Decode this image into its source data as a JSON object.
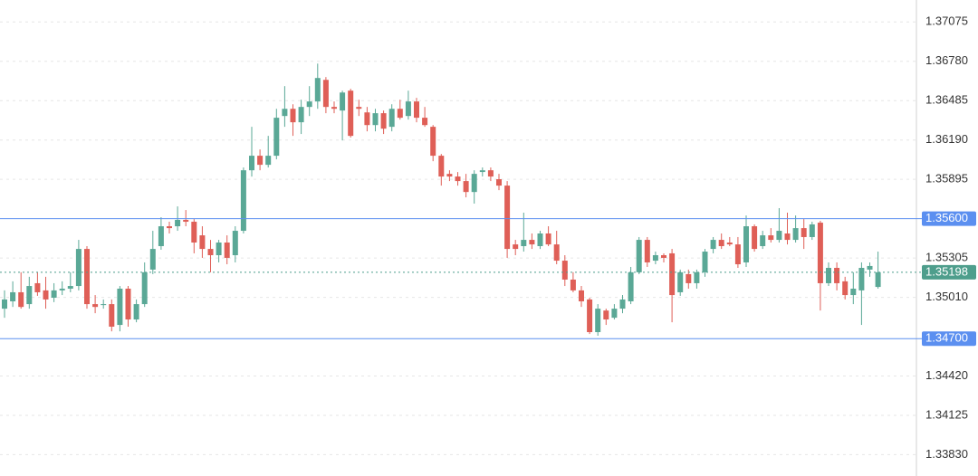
{
  "chart_data": {
    "type": "candlestick",
    "ylim": [
      1.3367,
      1.3724
    ],
    "yticks": [
      1.37075,
      {
        "value": 1.3678,
        "label": "1.36780"
      },
      1.36485,
      {
        "value": 1.3619,
        "label": "1.36190"
      },
      1.35895,
      1.35305,
      {
        "value": 1.3501,
        "label": "1.35010"
      },
      {
        "value": 1.3442,
        "label": "1.34420"
      },
      1.34125,
      {
        "value": 1.3383,
        "label": "1.33830"
      }
    ],
    "grid": true,
    "up_color": "#5aa896",
    "down_color": "#df5f57",
    "hlines": [
      {
        "value": 1.356,
        "label": "1.35600",
        "color": "#5b8ff0"
      },
      {
        "value": 1.347,
        "label": "1.34700",
        "color": "#5b8ff0"
      }
    ],
    "price_line": {
      "value": 1.35198,
      "color": "#4e9e8c"
    },
    "candles": [
      [
        1.34925,
        1.35062,
        1.34857,
        1.34994
      ],
      [
        1.3498,
        1.3513,
        1.34938,
        1.35048
      ],
      [
        1.35048,
        1.35198,
        1.34925,
        1.34938
      ],
      [
        1.34959,
        1.35164,
        1.34925,
        1.35095
      ],
      [
        1.35116,
        1.35198,
        1.35021,
        1.35048
      ],
      [
        1.35062,
        1.35164,
        1.34925,
        1.34994
      ],
      [
        1.35007,
        1.35116,
        1.34974,
        1.35062
      ],
      [
        1.35062,
        1.3513,
        1.35027,
        1.35075
      ],
      [
        1.35075,
        1.35198,
        1.35048,
        1.35095
      ],
      [
        1.35095,
        1.35441,
        1.35062,
        1.35373
      ],
      [
        1.35373,
        1.35394,
        1.34925,
        1.34959
      ],
      [
        1.34959,
        1.35027,
        1.34891,
        1.34938
      ],
      [
        1.34952,
        1.34994,
        1.34925,
        1.34959
      ],
      [
        1.34959,
        1.34994,
        1.34755,
        1.3479
      ],
      [
        1.34803,
        1.35095,
        1.34755,
        1.35075
      ],
      [
        1.35075,
        1.35095,
        1.3479,
        1.34844
      ],
      [
        1.34844,
        1.34994,
        1.34823,
        1.34959
      ],
      [
        1.34959,
        1.35272,
        1.34938,
        1.35198
      ],
      [
        1.35218,
        1.35509,
        1.35184,
        1.35373
      ],
      [
        1.35394,
        1.35611,
        1.35367,
        1.35543
      ],
      [
        1.35543,
        1.35577,
        1.35489,
        1.35529
      ],
      [
        1.35543,
        1.35692,
        1.35509,
        1.35591
      ],
      [
        1.35591,
        1.35665,
        1.35543,
        1.35577
      ],
      [
        1.35577,
        1.35597,
        1.3534,
        1.35421
      ],
      [
        1.35475,
        1.35543,
        1.35306,
        1.35373
      ],
      [
        1.35373,
        1.35441,
        1.35198,
        1.35326
      ],
      [
        1.35326,
        1.35441,
        1.35272,
        1.35421
      ],
      [
        1.35421,
        1.35475,
        1.35258,
        1.35306
      ],
      [
        1.35326,
        1.35543,
        1.35272,
        1.35509
      ],
      [
        1.35509,
        1.35984,
        1.35489,
        1.35963
      ],
      [
        1.35963,
        1.36289,
        1.35916,
        1.36072
      ],
      [
        1.36072,
        1.36119,
        1.35963,
        1.36004
      ],
      [
        1.36004,
        1.36221,
        1.35984,
        1.36072
      ],
      [
        1.36072,
        1.36424,
        1.36045,
        1.36357
      ],
      [
        1.3637,
        1.36594,
        1.36289,
        1.36424
      ],
      [
        1.36424,
        1.36458,
        1.36221,
        1.36323
      ],
      [
        1.36323,
        1.36492,
        1.36235,
        1.36438
      ],
      [
        1.36438,
        1.36594,
        1.3637,
        1.36479
      ],
      [
        1.36479,
        1.36763,
        1.36424,
        1.36655
      ],
      [
        1.36641,
        1.36662,
        1.36391,
        1.36438
      ],
      [
        1.36438,
        1.36479,
        1.36391,
        1.36424
      ],
      [
        1.36411,
        1.3656,
        1.36187,
        1.36546
      ],
      [
        1.3656,
        1.36574,
        1.36208,
        1.36221
      ],
      [
        1.36438,
        1.36492,
        1.3637,
        1.36424
      ],
      [
        1.36397,
        1.36438,
        1.36255,
        1.36302
      ],
      [
        1.36302,
        1.36424,
        1.36255,
        1.36391
      ],
      [
        1.36391,
        1.36411,
        1.36235,
        1.36275
      ],
      [
        1.36289,
        1.36458,
        1.36255,
        1.36424
      ],
      [
        1.36424,
        1.36492,
        1.36343,
        1.36357
      ],
      [
        1.3637,
        1.3656,
        1.36343,
        1.36479
      ],
      [
        1.36479,
        1.36506,
        1.36323,
        1.36357
      ],
      [
        1.36357,
        1.36438,
        1.36289,
        1.36302
      ],
      [
        1.36289,
        1.36302,
        1.36031,
        1.36072
      ],
      [
        1.36072,
        1.36085,
        1.35848,
        1.35916
      ],
      [
        1.35936,
        1.35963,
        1.35882,
        1.35916
      ],
      [
        1.35916,
        1.3595,
        1.35848,
        1.35882
      ],
      [
        1.35882,
        1.35936,
        1.3576,
        1.358
      ],
      [
        1.358,
        1.35963,
        1.35713,
        1.35936
      ],
      [
        1.3595,
        1.35984,
        1.35916,
        1.35963
      ],
      [
        1.35963,
        1.35984,
        1.35882,
        1.35916
      ],
      [
        1.35896,
        1.35936,
        1.35814,
        1.35848
      ],
      [
        1.35848,
        1.35882,
        1.35306,
        1.35373
      ],
      [
        1.35407,
        1.35441,
        1.35326,
        1.35373
      ],
      [
        1.35394,
        1.35645,
        1.35353,
        1.35441
      ],
      [
        1.35441,
        1.35489,
        1.35373,
        1.35407
      ],
      [
        1.35394,
        1.35509,
        1.35373,
        1.35489
      ],
      [
        1.35489,
        1.35543,
        1.35394,
        1.35407
      ],
      [
        1.35407,
        1.35509,
        1.35258,
        1.35285
      ],
      [
        1.35285,
        1.35326,
        1.35095,
        1.35143
      ],
      [
        1.35143,
        1.35198,
        1.35048,
        1.35062
      ],
      [
        1.35062,
        1.35095,
        1.34938,
        1.3498
      ],
      [
        1.34994,
        1.35007,
        1.34735,
        1.34749
      ],
      [
        1.34749,
        1.34959,
        1.34722,
        1.34925
      ],
      [
        1.34911,
        1.34925,
        1.34803,
        1.34844
      ],
      [
        1.34857,
        1.34959,
        1.34844,
        1.34925
      ],
      [
        1.34925,
        1.35027,
        1.34891,
        1.34994
      ],
      [
        1.3498,
        1.35238,
        1.34959,
        1.35198
      ],
      [
        1.35198,
        1.35462,
        1.35184,
        1.35441
      ],
      [
        1.35441,
        1.35462,
        1.35238,
        1.35272
      ],
      [
        1.35285,
        1.35353,
        1.35258,
        1.35326
      ],
      [
        1.35326,
        1.3534,
        1.35272,
        1.35306
      ],
      [
        1.3534,
        1.35373,
        1.34823,
        1.35027
      ],
      [
        1.35048,
        1.35218,
        1.35021,
        1.35198
      ],
      [
        1.35184,
        1.35218,
        1.35075,
        1.35116
      ],
      [
        1.35116,
        1.35218,
        1.35075,
        1.35198
      ],
      [
        1.35198,
        1.35373,
        1.35164,
        1.35353
      ],
      [
        1.35373,
        1.35462,
        1.3534,
        1.35441
      ],
      [
        1.35441,
        1.35489,
        1.35373,
        1.35394
      ],
      [
        1.35421,
        1.35462,
        1.35394,
        1.35407
      ],
      [
        1.35407,
        1.35462,
        1.35231,
        1.35258
      ],
      [
        1.35272,
        1.35624,
        1.35238,
        1.35543
      ],
      [
        1.35543,
        1.35557,
        1.35353,
        1.35373
      ],
      [
        1.35394,
        1.35509,
        1.35373,
        1.35475
      ],
      [
        1.35475,
        1.35529,
        1.35421,
        1.35441
      ],
      [
        1.35441,
        1.35679,
        1.35421,
        1.35509
      ],
      [
        1.35489,
        1.35645,
        1.35407,
        1.35441
      ],
      [
        1.35441,
        1.35624,
        1.35421,
        1.35529
      ],
      [
        1.35529,
        1.35597,
        1.35373,
        1.35462
      ],
      [
        1.35462,
        1.35577,
        1.35441,
        1.35557
      ],
      [
        1.3557,
        1.35584,
        1.34911,
        1.35116
      ],
      [
        1.35116,
        1.35272,
        1.35095,
        1.35231
      ],
      [
        1.35231,
        1.35272,
        1.35062,
        1.35116
      ],
      [
        1.3513,
        1.35164,
        1.34994,
        1.35027
      ],
      [
        1.35027,
        1.35198,
        1.34959,
        1.35075
      ],
      [
        1.35062,
        1.35272,
        1.34803,
        1.35231
      ],
      [
        1.35218,
        1.35272,
        1.35164,
        1.35245
      ],
      [
        1.35088,
        1.35353,
        1.35075,
        1.35198
      ]
    ]
  }
}
